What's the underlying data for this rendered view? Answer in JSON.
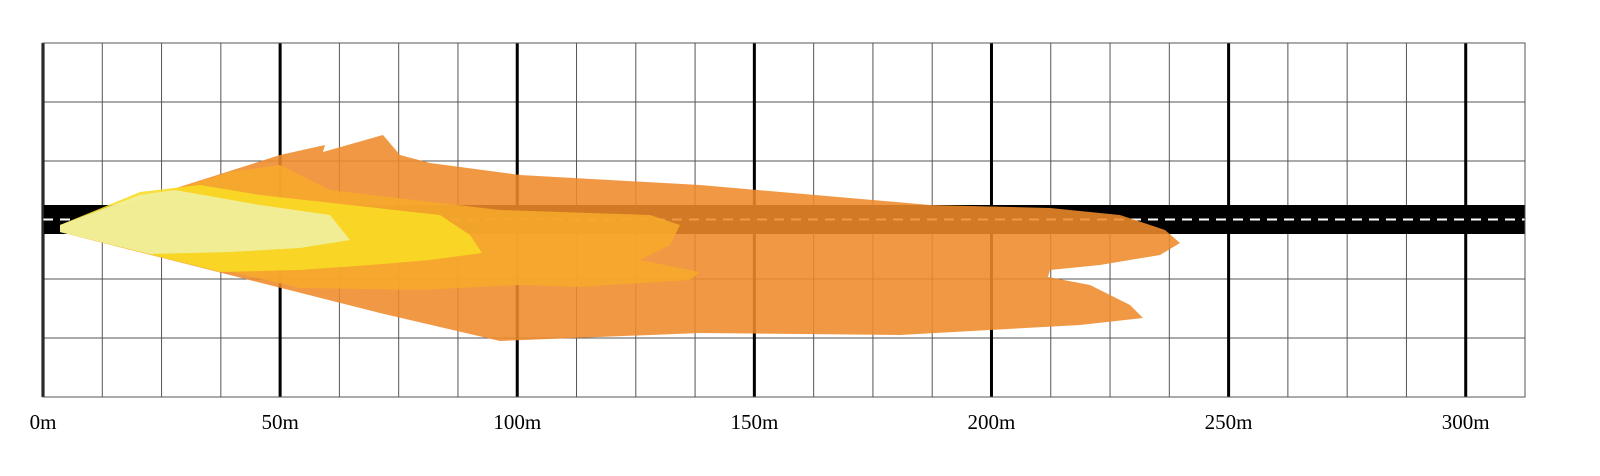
{
  "chart_data": {
    "type": "beam",
    "xlim": [
      0,
      312.5
    ],
    "xticks": [
      {
        "value": 0,
        "label": "0m"
      },
      {
        "value": 50,
        "label": "50m"
      },
      {
        "value": 100,
        "label": "100m"
      },
      {
        "value": 150,
        "label": "150m"
      },
      {
        "value": 200,
        "label": "200m"
      },
      {
        "value": 250,
        "label": "250m"
      },
      {
        "value": 300,
        "label": "300m"
      }
    ],
    "minor_xticks": [
      12.5,
      25,
      37.5,
      62.5,
      75,
      87.5,
      112.5,
      125,
      137.5,
      162.5,
      175,
      187.5,
      212.5,
      225,
      237.5,
      262.5,
      275,
      287.5
    ],
    "grid": true
  }
}
